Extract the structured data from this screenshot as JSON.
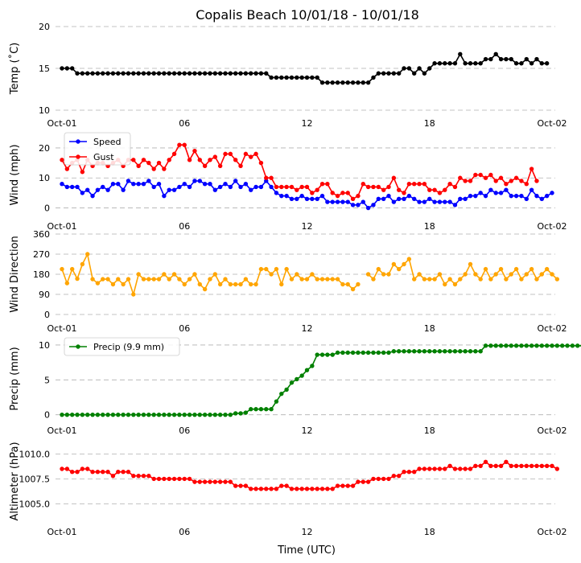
{
  "chart_data": {
    "type": "line",
    "title": "Copalis Beach 10/01/18 - 10/01/18",
    "xlabel": "Time (UTC)",
    "x_ticks": [
      "Oct-01",
      "06",
      "12",
      "18",
      "Oct-02"
    ],
    "x_range_hours": [
      0,
      24
    ],
    "panels": [
      {
        "id": "temp",
        "ylabel": "Temp ($^\\circ$C)",
        "ylim": [
          10,
          20
        ],
        "yticks": [
          10,
          15,
          20
        ],
        "legend": [],
        "series": [
          {
            "name": "Temp",
            "color": "#000000",
            "x_start": 0.0,
            "x_step": 0.25,
            "values": [
              15.0,
              15.0,
              15.0,
              14.4,
              14.4,
              14.4,
              14.4,
              14.4,
              14.4,
              14.4,
              14.4,
              14.4,
              14.4,
              14.4,
              14.4,
              14.4,
              14.4,
              14.4,
              14.4,
              14.4,
              14.4,
              14.4,
              14.4,
              14.4,
              14.4,
              14.4,
              14.4,
              14.4,
              14.4,
              14.4,
              14.4,
              14.4,
              14.4,
              14.4,
              14.4,
              14.4,
              14.4,
              14.4,
              14.4,
              14.4,
              14.4,
              13.9,
              13.9,
              13.9,
              13.9,
              13.9,
              13.9,
              13.9,
              13.9,
              13.9,
              13.9,
              13.3,
              13.3,
              13.3,
              13.3,
              13.3,
              13.3,
              13.3,
              13.3,
              13.3,
              13.3,
              13.9,
              14.4,
              14.4,
              14.4,
              14.4,
              14.4,
              15.0,
              15.0,
              14.4,
              15.0,
              14.4,
              15.0,
              15.6,
              15.6,
              15.6,
              15.6,
              15.6,
              16.7,
              15.6,
              15.6,
              15.6,
              15.6,
              16.1,
              16.1,
              16.7,
              16.1,
              16.1,
              16.1,
              15.6,
              15.6,
              16.1,
              15.6,
              16.1,
              15.6,
              15.6
            ]
          }
        ]
      },
      {
        "id": "wind",
        "ylabel": "Wind (mph)",
        "ylim": [
          -2,
          24
        ],
        "yticks": [
          0,
          10,
          20
        ],
        "legend": [
          "Speed",
          "Gust"
        ],
        "series": [
          {
            "name": "Speed",
            "color": "#0000ff",
            "x_start": 0.0,
            "x_step": 0.25,
            "values": [
              8,
              7,
              7,
              7,
              5,
              6,
              4,
              6,
              7,
              6,
              8,
              8,
              6,
              9,
              8,
              8,
              8,
              9,
              7,
              8,
              4,
              6,
              6,
              7,
              8,
              7,
              9,
              9,
              8,
              8,
              6,
              7,
              8,
              7,
              9,
              7,
              8,
              6,
              7,
              7,
              9,
              7,
              5,
              4,
              4,
              3,
              3,
              4,
              3,
              3,
              3,
              4,
              2,
              2,
              2,
              2,
              2,
              1,
              1,
              2,
              0,
              1,
              3,
              3,
              4,
              2,
              3,
              3,
              4,
              3,
              2,
              2,
              3,
              2,
              2,
              2,
              2,
              1,
              3,
              3,
              4,
              4,
              5,
              4,
              6,
              5,
              5,
              6,
              4,
              4,
              4,
              3,
              6,
              4,
              3,
              4,
              5
            ]
          },
          {
            "name": "Gust",
            "color": "#ff0000",
            "x_start": 0.0,
            "x_step": 0.25,
            "values": [
              16,
              13,
              15,
              16,
              12,
              16,
              14,
              15,
              15,
              14,
              15,
              16,
              14,
              16,
              16,
              14,
              16,
              15,
              13,
              15,
              13,
              16,
              18,
              21,
              21,
              16,
              19,
              16,
              14,
              16,
              17,
              14,
              18,
              18,
              16,
              14,
              18,
              17,
              18,
              15,
              10,
              10,
              7,
              7,
              7,
              7,
              6,
              7,
              7,
              5,
              6,
              8,
              8,
              5,
              4,
              5,
              5,
              3,
              4,
              8,
              7,
              7,
              7,
              6,
              7,
              10,
              6,
              5,
              8,
              8,
              8,
              8,
              6,
              6,
              5,
              6,
              8,
              7,
              10,
              9,
              9,
              11,
              11,
              10,
              11,
              9,
              10,
              8,
              9,
              10,
              9,
              8,
              13,
              9
            ]
          }
        ]
      },
      {
        "id": "dir",
        "ylabel": "Wind Direction",
        "ylim": [
          0,
          360
        ],
        "yticks": [
          0,
          90,
          180,
          270,
          360
        ],
        "legend": [],
        "series": [
          {
            "name": "Direction",
            "color": "#ffa500",
            "x_start": 0.0,
            "x_step": 0.25,
            "values": [
              203,
              140,
              203,
              160,
              225,
              270,
              158,
              140,
              158,
              158,
              135,
              158,
              135,
              158,
              90,
              180,
              158,
              158,
              158,
              158,
              180,
              158,
              180,
              158,
              135,
              158,
              180,
              135,
              113,
              158,
              180,
              135,
              158,
              135,
              135,
              135,
              158,
              135,
              135,
              203,
              203,
              180,
              203,
              135,
              203,
              158,
              180,
              158,
              158,
              180,
              158,
              158,
              158,
              158,
              158,
              135,
              135,
              113,
              135,
              null,
              180,
              158,
              203,
              180,
              180,
              225,
              203,
              225,
              248,
              158,
              180,
              158,
              158,
              158,
              180,
              135,
              158,
              135,
              158,
              180,
              225,
              180,
              158,
              203,
              158,
              180,
              203,
              158,
              180,
              203,
              158,
              180,
              203,
              158,
              180,
              203,
              180,
              158
            ]
          }
        ]
      },
      {
        "id": "precip",
        "ylabel": "Precip (mm)",
        "ylim": [
          -0.5,
          10.8
        ],
        "yticks": [
          0,
          5,
          10
        ],
        "legend": [
          "Precip (9.9 mm)"
        ],
        "series": [
          {
            "name": "Precip",
            "color": "#008000",
            "x_start": 0.0,
            "x_step": 0.25,
            "values": [
              0,
              0,
              0,
              0,
              0,
              0,
              0,
              0,
              0,
              0,
              0,
              0,
              0,
              0,
              0,
              0,
              0,
              0,
              0,
              0,
              0,
              0,
              0,
              0,
              0,
              0,
              0,
              0,
              0,
              0,
              0,
              0,
              0,
              0,
              0.2,
              0.2,
              0.3,
              0.8,
              0.8,
              0.8,
              0.8,
              0.8,
              1.9,
              3.0,
              3.6,
              4.6,
              5.1,
              5.6,
              6.4,
              7.0,
              8.6,
              8.6,
              8.6,
              8.6,
              8.9,
              8.9,
              8.9,
              8.9,
              8.9,
              8.9,
              8.9,
              8.9,
              8.9,
              8.9,
              8.9,
              9.1,
              9.1,
              9.1,
              9.1,
              9.1,
              9.1,
              9.1,
              9.1,
              9.1,
              9.1,
              9.1,
              9.1,
              9.1,
              9.1,
              9.1,
              9.1,
              9.1,
              9.1,
              9.9,
              9.9,
              9.9,
              9.9,
              9.9,
              9.9,
              9.9,
              9.9,
              9.9,
              9.9,
              9.9,
              9.9,
              9.9,
              9.9,
              9.9,
              9.9,
              9.9,
              9.9,
              9.9,
              9.9
            ]
          }
        ]
      },
      {
        "id": "alt",
        "ylabel": "Altimeter (hPa)",
        "ylim": [
          1003.5,
          1011.0
        ],
        "yticks": [
          1005.0,
          1007.5,
          1010.0
        ],
        "ytick_labels": [
          "1005.0",
          "1007.5",
          "1010.0"
        ],
        "legend": [],
        "series": [
          {
            "name": "Altimeter",
            "color": "#ff0000",
            "x_start": 0.0,
            "x_step": 0.25,
            "values": [
              1008.5,
              1008.5,
              1008.2,
              1008.2,
              1008.5,
              1008.5,
              1008.2,
              1008.2,
              1008.2,
              1008.2,
              1007.8,
              1008.2,
              1008.2,
              1008.2,
              1007.8,
              1007.8,
              1007.8,
              1007.8,
              1007.5,
              1007.5,
              1007.5,
              1007.5,
              1007.5,
              1007.5,
              1007.5,
              1007.5,
              1007.2,
              1007.2,
              1007.2,
              1007.2,
              1007.2,
              1007.2,
              1007.2,
              1007.2,
              1006.8,
              1006.8,
              1006.8,
              1006.5,
              1006.5,
              1006.5,
              1006.5,
              1006.5,
              1006.5,
              1006.8,
              1006.8,
              1006.5,
              1006.5,
              1006.5,
              1006.5,
              1006.5,
              1006.5,
              1006.5,
              1006.5,
              1006.5,
              1006.8,
              1006.8,
              1006.8,
              1006.8,
              1007.2,
              1007.2,
              1007.2,
              1007.5,
              1007.5,
              1007.5,
              1007.5,
              1007.8,
              1007.8,
              1008.2,
              1008.2,
              1008.2,
              1008.5,
              1008.5,
              1008.5,
              1008.5,
              1008.5,
              1008.5,
              1008.8,
              1008.5,
              1008.5,
              1008.5,
              1008.5,
              1008.8,
              1008.8,
              1009.2,
              1008.8,
              1008.8,
              1008.8,
              1009.2,
              1008.8,
              1008.8,
              1008.8,
              1008.8,
              1008.8,
              1008.8,
              1008.8,
              1008.8,
              1008.8,
              1008.5
            ]
          }
        ]
      }
    ]
  }
}
